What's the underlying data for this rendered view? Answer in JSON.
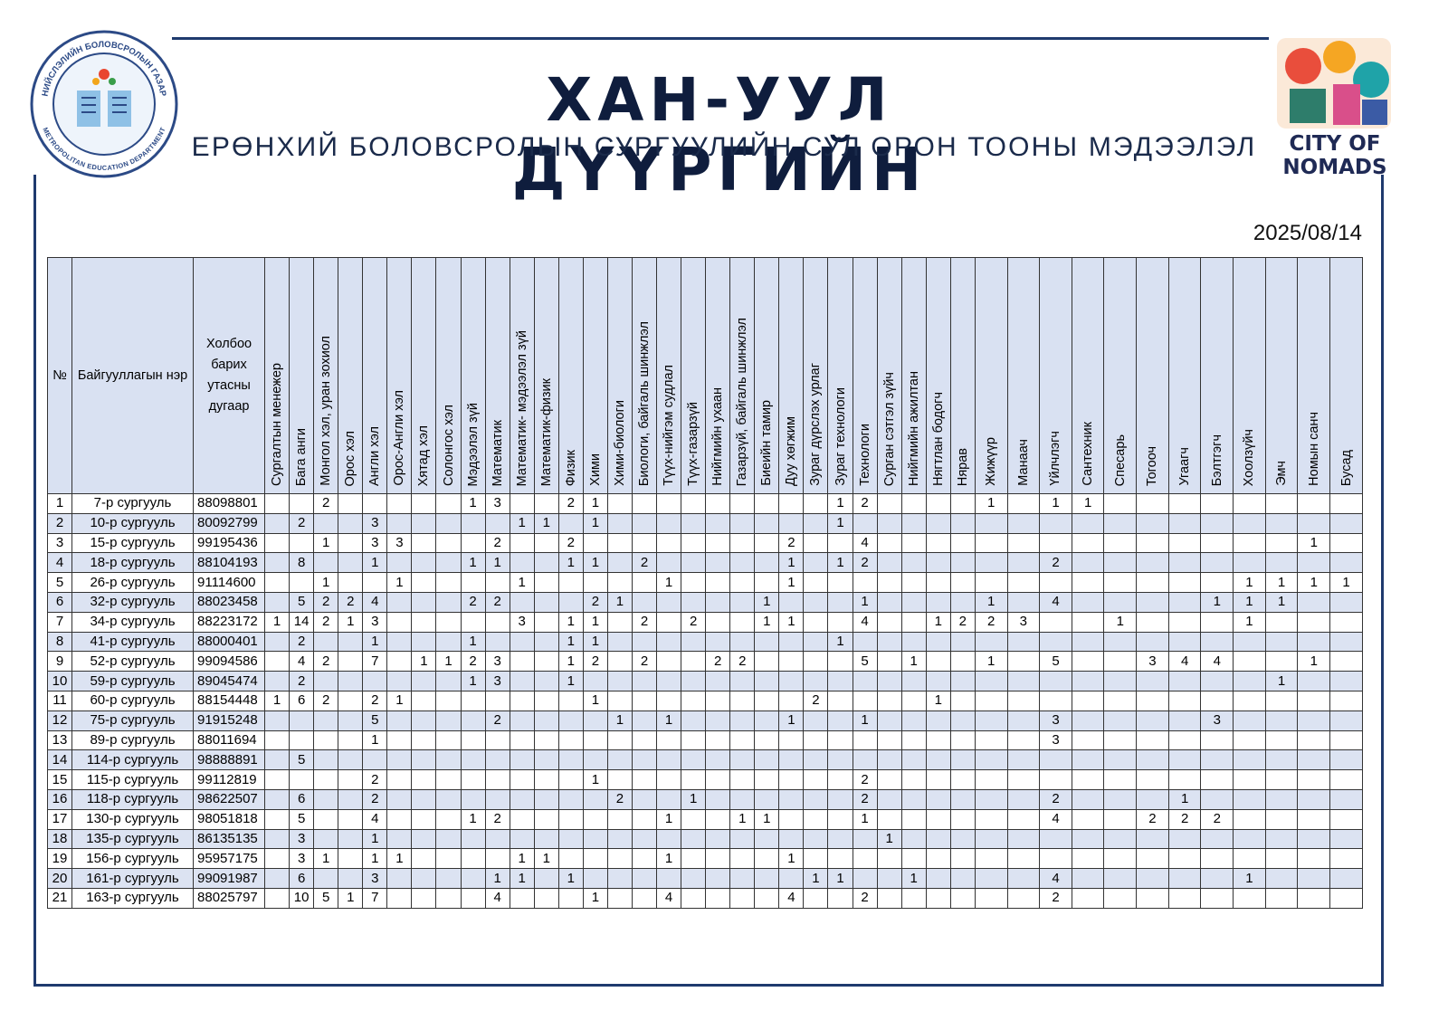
{
  "header": {
    "title": "ХАН-УУЛ ДҮҮРГИЙН",
    "subtitle": "ЕРӨНХИЙ БОЛОВСРОЛЫН СУРГУУЛИЙН СУЛ ОРОН ТООНЫ МЭДЭЭЛЭЛ",
    "date": "2025/08/14"
  },
  "logos": {
    "left_top": "НИЙСЛЭЛИЙН БОЛОВСРОЛЫН ГАЗАР",
    "left_bottom": "METROPOLITAN EDUCATION DEPARTMENT",
    "right_line1": "CITY OF",
    "right_line2": "NOMADS"
  },
  "table": {
    "headers": {
      "no": "№",
      "name": "Байгууллагын нэр",
      "phone": "Холбоо барих утасны дугаар",
      "subjects": [
        "Сургалтын менежер",
        "Бага анги",
        "Монгол хэл, уран зохиол",
        "Орос хэл",
        "Англи хэл",
        "Орос-Англи хэл",
        "Хятад хэл",
        "Солонгос хэл",
        "Мэдээлэл зүй",
        "Математик",
        "Математик- мэдээлэл зүй",
        "Математик-физик",
        "Физик",
        "Хими",
        "Хими-биологи",
        "Биологи, байгаль шинжлэл",
        "Түүх-нийгэм судлал",
        "Түүх-газарзүй",
        "Нийгмийн ухаан",
        "Газарзүй, байгаль шинжлэл",
        "Биеийн тамир",
        "Дуу хөгжим",
        "Зураг дүрслэх урлаг",
        "Зураг технологи",
        "Технологи",
        "Сурган сэтгэл зүйч",
        "Нийгмийн ажилтан",
        "Нягтлан бодогч",
        "Нярав",
        "Жижүүр",
        "Манаач",
        "Үйлчлэгч",
        "Сантехник",
        "Спесарь",
        "Тогооч",
        "Угаагч",
        "Бэлтгэгч",
        "Хоолзүйч",
        "Эмч",
        "Номын санч",
        "Бусад"
      ]
    },
    "rows": [
      {
        "no": 1,
        "name": "7-р сургууль",
        "phone": "88098801",
        "cells": [
          null,
          null,
          2,
          null,
          null,
          null,
          null,
          null,
          1,
          3,
          null,
          null,
          2,
          1,
          null,
          null,
          null,
          null,
          null,
          null,
          null,
          null,
          null,
          1,
          2,
          null,
          null,
          null,
          null,
          1,
          null,
          1,
          1,
          null,
          null,
          null,
          null,
          null,
          null,
          null,
          null
        ]
      },
      {
        "no": 2,
        "name": "10-р сургууль",
        "phone": "80092799",
        "cells": [
          null,
          2,
          null,
          null,
          3,
          null,
          null,
          null,
          null,
          null,
          1,
          1,
          null,
          1,
          null,
          null,
          null,
          null,
          null,
          null,
          null,
          null,
          null,
          1,
          null,
          null,
          null,
          null,
          null,
          null,
          null,
          null,
          null,
          null,
          null,
          null,
          null,
          null,
          null,
          null,
          null
        ]
      },
      {
        "no": 3,
        "name": "15-р сургууль",
        "phone": "99195436",
        "cells": [
          null,
          null,
          1,
          null,
          3,
          3,
          null,
          null,
          null,
          2,
          null,
          null,
          2,
          null,
          null,
          null,
          null,
          null,
          null,
          null,
          null,
          2,
          null,
          null,
          4,
          null,
          null,
          null,
          null,
          null,
          null,
          null,
          null,
          null,
          null,
          null,
          null,
          null,
          null,
          1,
          null
        ]
      },
      {
        "no": 4,
        "name": "18-р сургууль",
        "phone": "88104193",
        "cells": [
          null,
          8,
          null,
          null,
          1,
          null,
          null,
          null,
          1,
          1,
          null,
          null,
          1,
          1,
          null,
          2,
          null,
          null,
          null,
          null,
          null,
          1,
          null,
          1,
          2,
          null,
          null,
          null,
          null,
          null,
          null,
          2,
          null,
          null,
          null,
          null,
          null,
          null,
          null,
          null,
          null
        ]
      },
      {
        "no": 5,
        "name": "26-р сургууль",
        "phone": "91114600",
        "cells": [
          null,
          null,
          1,
          null,
          null,
          1,
          null,
          null,
          null,
          null,
          1,
          null,
          null,
          null,
          null,
          null,
          1,
          null,
          null,
          null,
          null,
          1,
          null,
          null,
          null,
          null,
          null,
          null,
          null,
          null,
          null,
          null,
          null,
          null,
          null,
          null,
          null,
          1,
          1,
          1,
          1
        ]
      },
      {
        "no": 6,
        "name": "32-р сургууль",
        "phone": "88023458",
        "cells": [
          null,
          5,
          2,
          2,
          4,
          null,
          null,
          null,
          2,
          2,
          null,
          null,
          null,
          2,
          1,
          null,
          null,
          null,
          null,
          null,
          1,
          null,
          null,
          null,
          1,
          null,
          null,
          null,
          null,
          1,
          null,
          4,
          null,
          null,
          null,
          null,
          1,
          1,
          1,
          null,
          null
        ]
      },
      {
        "no": 7,
        "name": "34-р сургууль",
        "phone": "88223172",
        "cells": [
          1,
          14,
          2,
          1,
          3,
          null,
          null,
          null,
          null,
          null,
          3,
          null,
          1,
          1,
          null,
          2,
          null,
          2,
          null,
          null,
          1,
          1,
          null,
          null,
          4,
          null,
          null,
          1,
          2,
          2,
          3,
          null,
          null,
          1,
          null,
          null,
          null,
          1,
          null,
          null,
          null
        ]
      },
      {
        "no": 8,
        "name": "41-р сургууль",
        "phone": "88000401",
        "cells": [
          null,
          2,
          null,
          null,
          1,
          null,
          null,
          null,
          1,
          null,
          null,
          null,
          1,
          1,
          null,
          null,
          null,
          null,
          null,
          null,
          null,
          null,
          null,
          1,
          null,
          null,
          null,
          null,
          null,
          null,
          null,
          null,
          null,
          null,
          null,
          null,
          null,
          null,
          null,
          null,
          null
        ]
      },
      {
        "no": 9,
        "name": "52-р сургууль",
        "phone": "99094586",
        "cells": [
          null,
          4,
          2,
          null,
          7,
          null,
          1,
          1,
          2,
          3,
          null,
          null,
          1,
          2,
          null,
          2,
          null,
          null,
          2,
          2,
          null,
          null,
          null,
          null,
          5,
          null,
          1,
          null,
          null,
          1,
          null,
          5,
          null,
          null,
          3,
          4,
          4,
          null,
          null,
          1,
          null
        ]
      },
      {
        "no": 10,
        "name": "59-р сургууль",
        "phone": "89045474",
        "cells": [
          null,
          2,
          null,
          null,
          null,
          null,
          null,
          null,
          1,
          3,
          null,
          null,
          1,
          null,
          null,
          null,
          null,
          null,
          null,
          null,
          null,
          null,
          null,
          null,
          null,
          null,
          null,
          null,
          null,
          null,
          null,
          null,
          null,
          null,
          null,
          null,
          null,
          null,
          1,
          null,
          null
        ]
      },
      {
        "no": 11,
        "name": "60-р сургууль",
        "phone": "88154448",
        "cells": [
          1,
          6,
          2,
          null,
          2,
          1,
          null,
          null,
          null,
          null,
          null,
          null,
          null,
          1,
          null,
          null,
          null,
          null,
          null,
          null,
          null,
          null,
          2,
          null,
          null,
          null,
          null,
          1,
          null,
          null,
          null,
          null,
          null,
          null,
          null,
          null,
          null,
          null,
          null,
          null,
          null
        ]
      },
      {
        "no": 12,
        "name": "75-р сургууль",
        "phone": "91915248",
        "cells": [
          null,
          null,
          null,
          null,
          5,
          null,
          null,
          null,
          null,
          2,
          null,
          null,
          null,
          null,
          1,
          null,
          1,
          null,
          null,
          null,
          null,
          1,
          null,
          null,
          1,
          null,
          null,
          null,
          null,
          null,
          null,
          3,
          null,
          null,
          null,
          null,
          3,
          null,
          null,
          null,
          null
        ]
      },
      {
        "no": 13,
        "name": "89-р сургууль",
        "phone": "88011694",
        "cells": [
          null,
          null,
          null,
          null,
          1,
          null,
          null,
          null,
          null,
          null,
          null,
          null,
          null,
          null,
          null,
          null,
          null,
          null,
          null,
          null,
          null,
          null,
          null,
          null,
          null,
          null,
          null,
          null,
          null,
          null,
          null,
          3,
          null,
          null,
          null,
          null,
          null,
          null,
          null,
          null,
          null
        ]
      },
      {
        "no": 14,
        "name": "114-р сургууль",
        "phone": "98888891",
        "cells": [
          null,
          5,
          null,
          null,
          null,
          null,
          null,
          null,
          null,
          null,
          null,
          null,
          null,
          null,
          null,
          null,
          null,
          null,
          null,
          null,
          null,
          null,
          null,
          null,
          null,
          null,
          null,
          null,
          null,
          null,
          null,
          null,
          null,
          null,
          null,
          null,
          null,
          null,
          null,
          null,
          null
        ]
      },
      {
        "no": 15,
        "name": "115-р сургууль",
        "phone": "99112819",
        "cells": [
          null,
          null,
          null,
          null,
          2,
          null,
          null,
          null,
          null,
          null,
          null,
          null,
          null,
          1,
          null,
          null,
          null,
          null,
          null,
          null,
          null,
          null,
          null,
          null,
          2,
          null,
          null,
          null,
          null,
          null,
          null,
          null,
          null,
          null,
          null,
          null,
          null,
          null,
          null,
          null,
          null
        ]
      },
      {
        "no": 16,
        "name": "118-р сургууль",
        "phone": "98622507",
        "cells": [
          null,
          6,
          null,
          null,
          2,
          null,
          null,
          null,
          null,
          null,
          null,
          null,
          null,
          null,
          2,
          null,
          null,
          1,
          null,
          null,
          null,
          null,
          null,
          null,
          2,
          null,
          null,
          null,
          null,
          null,
          null,
          2,
          null,
          null,
          null,
          1,
          null,
          null,
          null,
          null,
          null
        ]
      },
      {
        "no": 17,
        "name": "130-р сургууль",
        "phone": "98051818",
        "cells": [
          null,
          5,
          null,
          null,
          4,
          null,
          null,
          null,
          1,
          2,
          null,
          null,
          null,
          null,
          null,
          null,
          1,
          null,
          null,
          1,
          1,
          null,
          null,
          null,
          1,
          null,
          null,
          null,
          null,
          null,
          null,
          4,
          null,
          null,
          2,
          2,
          2,
          null,
          null,
          null,
          null
        ]
      },
      {
        "no": 18,
        "name": "135-р сургууль",
        "phone": "86135135",
        "cells": [
          null,
          3,
          null,
          null,
          1,
          null,
          null,
          null,
          null,
          null,
          null,
          null,
          null,
          null,
          null,
          null,
          null,
          null,
          null,
          null,
          null,
          null,
          null,
          null,
          null,
          1,
          null,
          null,
          null,
          null,
          null,
          null,
          null,
          null,
          null,
          null,
          null,
          null,
          null,
          null,
          null
        ]
      },
      {
        "no": 19,
        "name": "156-р сургууль",
        "phone": "95957175",
        "cells": [
          null,
          3,
          1,
          null,
          1,
          1,
          null,
          null,
          null,
          null,
          1,
          1,
          null,
          null,
          null,
          null,
          1,
          null,
          null,
          null,
          null,
          1,
          null,
          null,
          null,
          null,
          null,
          null,
          null,
          null,
          null,
          null,
          null,
          null,
          null,
          null,
          null,
          null,
          null,
          null,
          null
        ]
      },
      {
        "no": 20,
        "name": "161-р сургууль",
        "phone": "99091987",
        "cells": [
          null,
          6,
          null,
          null,
          3,
          null,
          null,
          null,
          null,
          1,
          1,
          null,
          1,
          null,
          null,
          null,
          null,
          null,
          null,
          null,
          null,
          null,
          1,
          1,
          null,
          null,
          1,
          null,
          null,
          null,
          null,
          4,
          null,
          null,
          null,
          null,
          null,
          1,
          null,
          null,
          null
        ]
      },
      {
        "no": 21,
        "name": "163-р сургууль",
        "phone": "88025797",
        "cells": [
          null,
          10,
          5,
          1,
          7,
          null,
          null,
          null,
          null,
          4,
          null,
          null,
          null,
          1,
          null,
          null,
          4,
          null,
          null,
          null,
          null,
          4,
          null,
          null,
          2,
          null,
          null,
          null,
          null,
          null,
          null,
          2,
          null,
          null,
          null,
          null,
          null,
          null,
          null,
          null,
          null
        ]
      }
    ]
  }
}
